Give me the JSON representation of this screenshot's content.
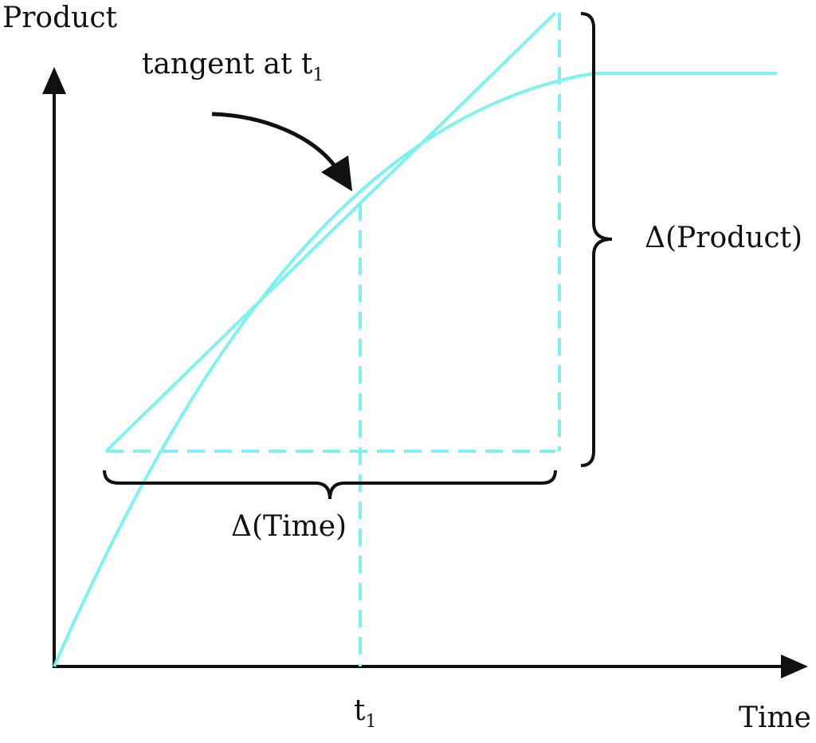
{
  "labels": {
    "y_axis": "Product",
    "x_axis": "Time",
    "tangent": "tangent at t",
    "tangent_sub": "1",
    "delta_product": "Δ(Product)",
    "delta_time": "Δ(Time)",
    "t1": "t",
    "t1_sub": "1"
  },
  "colors": {
    "curve": "#7ff1ee",
    "axes": "#111111",
    "text": "#111111"
  }
}
